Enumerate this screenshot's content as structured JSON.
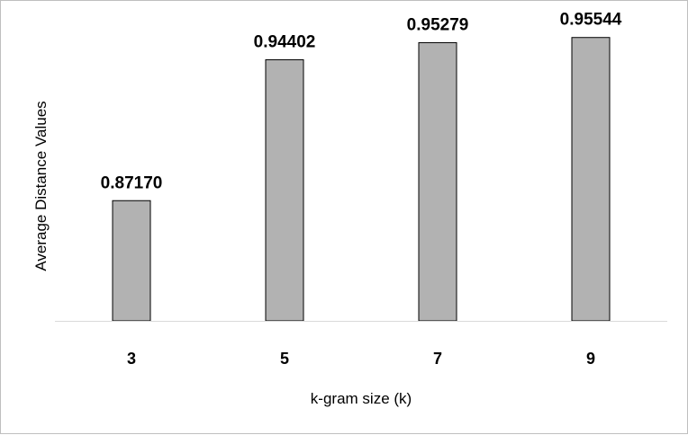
{
  "chart_data": {
    "type": "bar",
    "categories": [
      "3",
      "5",
      "7",
      "9"
    ],
    "values": [
      0.8717,
      0.94402,
      0.95279,
      0.95544
    ],
    "data_labels": [
      "0.87170",
      "0.94402",
      "0.95279",
      "0.95544"
    ],
    "title": "",
    "xlabel": "k-gram size (k)",
    "ylabel": "Average Distance Values",
    "ylim": [
      0.81,
      0.965
    ],
    "grid": false,
    "legend": "none",
    "colors": {
      "bar_fill": "#b2b2b2",
      "bar_stroke": "#000000",
      "axis": "#d9d9d9",
      "frame": "#bfbfbf"
    }
  }
}
